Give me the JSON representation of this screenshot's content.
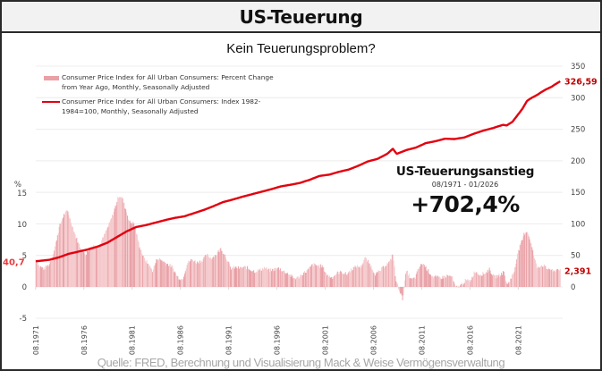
{
  "header": {
    "title": "US-Teuerung"
  },
  "chart_data": {
    "type": "bar+line",
    "title": "Kein Teuerungsproblem?",
    "legend": [
      {
        "name": "Consumer Price Index for All Urban Consumers: Percent Change from Year Ago, Monthly, Seasonally Adjusted",
        "style": "bar",
        "color": "#eaa0a6"
      },
      {
        "name": "Consumer Price Index for All Urban Consumers: Index 1982-1984=100, Monthly, Seasonally Adjusted",
        "style": "line",
        "color": "#e3000f"
      }
    ],
    "legend_placement": "top-left",
    "left_axis": {
      "label": "%",
      "ticks": [
        "15",
        "10",
        "5",
        "0",
        "-5"
      ],
      "range": [
        -5,
        15
      ]
    },
    "right_axis": {
      "label": "",
      "ticks": [
        "350",
        "300",
        "250",
        "200",
        "150",
        "100",
        "50",
        "0"
      ],
      "range": [
        0,
        350
      ]
    },
    "x_ticks": [
      "08.1971",
      "08.1976",
      "08.1981",
      "08.1986",
      "08.1991",
      "08.1996",
      "08.2001",
      "08.2006",
      "08.2011",
      "08.2016",
      "08.2021"
    ],
    "x_range": [
      1971.6,
      2026.0
    ],
    "grid": true,
    "series": [
      {
        "name": "CPI YoY % change",
        "axis": "left",
        "type": "bar",
        "points": [
          [
            1971.6,
            4.4
          ],
          [
            1972.0,
            3.3
          ],
          [
            1972.5,
            2.9
          ],
          [
            1973.0,
            3.6
          ],
          [
            1973.5,
            5.7
          ],
          [
            1974.0,
            9.4
          ],
          [
            1974.5,
            11.5
          ],
          [
            1974.9,
            12.2
          ],
          [
            1975.3,
            10.2
          ],
          [
            1975.8,
            7.8
          ],
          [
            1976.3,
            6.1
          ],
          [
            1976.8,
            5.2
          ],
          [
            1977.2,
            6.4
          ],
          [
            1977.7,
            6.6
          ],
          [
            1978.2,
            6.6
          ],
          [
            1978.7,
            8.3
          ],
          [
            1979.2,
            10.0
          ],
          [
            1979.7,
            12.1
          ],
          [
            1980.2,
            14.6
          ],
          [
            1980.5,
            14.4
          ],
          [
            1980.9,
            12.6
          ],
          [
            1981.3,
            10.4
          ],
          [
            1981.8,
            10.1
          ],
          [
            1982.3,
            6.8
          ],
          [
            1982.8,
            4.6
          ],
          [
            1983.3,
            3.6
          ],
          [
            1983.7,
            2.6
          ],
          [
            1984.2,
            4.6
          ],
          [
            1984.7,
            4.2
          ],
          [
            1985.2,
            3.7
          ],
          [
            1985.7,
            3.3
          ],
          [
            1986.3,
            1.6
          ],
          [
            1986.8,
            1.2
          ],
          [
            1987.3,
            3.8
          ],
          [
            1987.8,
            4.4
          ],
          [
            1988.3,
            3.9
          ],
          [
            1988.8,
            4.2
          ],
          [
            1989.3,
            5.1
          ],
          [
            1989.8,
            4.6
          ],
          [
            1990.3,
            5.2
          ],
          [
            1990.8,
            6.2
          ],
          [
            1991.3,
            4.8
          ],
          [
            1991.8,
            3.0
          ],
          [
            1992.3,
            3.1
          ],
          [
            1992.8,
            3.0
          ],
          [
            1993.3,
            3.2
          ],
          [
            1993.8,
            2.8
          ],
          [
            1994.3,
            2.5
          ],
          [
            1994.8,
            2.7
          ],
          [
            1995.3,
            3.1
          ],
          [
            1995.8,
            2.6
          ],
          [
            1996.3,
            2.8
          ],
          [
            1996.8,
            3.0
          ],
          [
            1997.3,
            2.5
          ],
          [
            1997.8,
            2.1
          ],
          [
            1998.3,
            1.4
          ],
          [
            1998.8,
            1.5
          ],
          [
            1999.3,
            2.2
          ],
          [
            1999.8,
            2.7
          ],
          [
            2000.3,
            3.6
          ],
          [
            2000.8,
            3.4
          ],
          [
            2001.3,
            3.3
          ],
          [
            2001.8,
            1.9
          ],
          [
            2002.3,
            1.5
          ],
          [
            2002.8,
            2.2
          ],
          [
            2003.3,
            2.4
          ],
          [
            2003.8,
            2.0
          ],
          [
            2004.3,
            2.8
          ],
          [
            2004.8,
            3.3
          ],
          [
            2005.3,
            3.2
          ],
          [
            2005.7,
            4.7
          ],
          [
            2006.3,
            3.4
          ],
          [
            2006.8,
            2.0
          ],
          [
            2007.3,
            2.6
          ],
          [
            2007.8,
            3.5
          ],
          [
            2008.3,
            4.0
          ],
          [
            2008.6,
            5.4
          ],
          [
            2008.9,
            1.1
          ],
          [
            2009.3,
            -0.6
          ],
          [
            2009.6,
            -2.0
          ],
          [
            2010.0,
            2.6
          ],
          [
            2010.5,
            1.2
          ],
          [
            2010.9,
            1.4
          ],
          [
            2011.3,
            3.1
          ],
          [
            2011.7,
            3.8
          ],
          [
            2012.2,
            2.7
          ],
          [
            2012.7,
            1.7
          ],
          [
            2013.2,
            1.5
          ],
          [
            2013.7,
            1.5
          ],
          [
            2014.2,
            1.8
          ],
          [
            2014.7,
            1.7
          ],
          [
            2015.1,
            -0.1
          ],
          [
            2015.6,
            0.2
          ],
          [
            2016.1,
            1.0
          ],
          [
            2016.6,
            1.0
          ],
          [
            2017.1,
            2.5
          ],
          [
            2017.6,
            2.0
          ],
          [
            2018.1,
            2.2
          ],
          [
            2018.6,
            2.8
          ],
          [
            2019.1,
            1.6
          ],
          [
            2019.6,
            1.8
          ],
          [
            2020.1,
            2.4
          ],
          [
            2020.4,
            0.3
          ],
          [
            2020.8,
            1.3
          ],
          [
            2021.2,
            2.6
          ],
          [
            2021.5,
            5.3
          ],
          [
            2021.9,
            7.0
          ],
          [
            2022.2,
            8.5
          ],
          [
            2022.5,
            9.0
          ],
          [
            2022.9,
            7.1
          ],
          [
            2023.2,
            5.0
          ],
          [
            2023.5,
            3.2
          ],
          [
            2023.9,
            3.4
          ],
          [
            2024.2,
            3.5
          ],
          [
            2024.5,
            2.9
          ],
          [
            2024.9,
            2.9
          ],
          [
            2025.2,
            2.4
          ],
          [
            2025.5,
            2.7
          ],
          [
            2025.8,
            3.0
          ],
          [
            2026.0,
            2.391
          ]
        ]
      },
      {
        "name": "CPI index level",
        "axis": "right",
        "type": "line",
        "points": [
          [
            1971.6,
            40.7
          ],
          [
            1973.0,
            43.0
          ],
          [
            1974.0,
            47.0
          ],
          [
            1975.0,
            52.5
          ],
          [
            1976.0,
            56.0
          ],
          [
            1977.0,
            59.5
          ],
          [
            1978.0,
            64.0
          ],
          [
            1979.0,
            70.0
          ],
          [
            1980.0,
            79.0
          ],
          [
            1981.0,
            88.0
          ],
          [
            1982.0,
            95.0
          ],
          [
            1983.0,
            98.0
          ],
          [
            1984.0,
            102.0
          ],
          [
            1985.0,
            106.0
          ],
          [
            1986.0,
            109.5
          ],
          [
            1987.0,
            112.0
          ],
          [
            1988.0,
            117.0
          ],
          [
            1989.0,
            122.0
          ],
          [
            1990.0,
            128.0
          ],
          [
            1991.0,
            134.5
          ],
          [
            1992.0,
            138.5
          ],
          [
            1993.0,
            143.0
          ],
          [
            1994.0,
            147.0
          ],
          [
            1995.0,
            151.0
          ],
          [
            1996.0,
            155.0
          ],
          [
            1997.0,
            159.5
          ],
          [
            1998.0,
            162.0
          ],
          [
            1999.0,
            165.0
          ],
          [
            2000.0,
            170.0
          ],
          [
            2001.0,
            176.0
          ],
          [
            2002.0,
            178.0
          ],
          [
            2003.0,
            182.5
          ],
          [
            2004.0,
            186.0
          ],
          [
            2005.0,
            192.0
          ],
          [
            2006.0,
            199.0
          ],
          [
            2007.0,
            203.0
          ],
          [
            2008.0,
            211.0
          ],
          [
            2008.6,
            219.0
          ],
          [
            2009.0,
            211.0
          ],
          [
            2010.0,
            217.0
          ],
          [
            2011.0,
            221.0
          ],
          [
            2012.0,
            228.0
          ],
          [
            2013.0,
            231.0
          ],
          [
            2014.0,
            235.0
          ],
          [
            2015.0,
            234.5
          ],
          [
            2016.0,
            237.0
          ],
          [
            2017.0,
            243.0
          ],
          [
            2018.0,
            248.0
          ],
          [
            2019.0,
            252.0
          ],
          [
            2020.0,
            257.0
          ],
          [
            2020.4,
            256.0
          ],
          [
            2021.0,
            262.0
          ],
          [
            2021.5,
            272.0
          ],
          [
            2022.0,
            282.0
          ],
          [
            2022.5,
            295.0
          ],
          [
            2023.0,
            300.0
          ],
          [
            2023.5,
            304.0
          ],
          [
            2024.0,
            309.0
          ],
          [
            2024.5,
            313.5
          ],
          [
            2025.0,
            317.0
          ],
          [
            2025.5,
            322.0
          ],
          [
            2026.0,
            326.59
          ]
        ]
      }
    ],
    "annotations": {
      "start_value_label": "40,7",
      "end_index_label": "326,59",
      "end_pct_label": "2,391"
    }
  },
  "infobox": {
    "heading": "US-Teuerungsanstieg",
    "period": "08/1971 - 01/2026",
    "value": "+702,4%"
  },
  "footer": {
    "source": "Quelle: FRED, Berechnung und Visualisierung Mack & Weise Vermögensverwaltung"
  }
}
